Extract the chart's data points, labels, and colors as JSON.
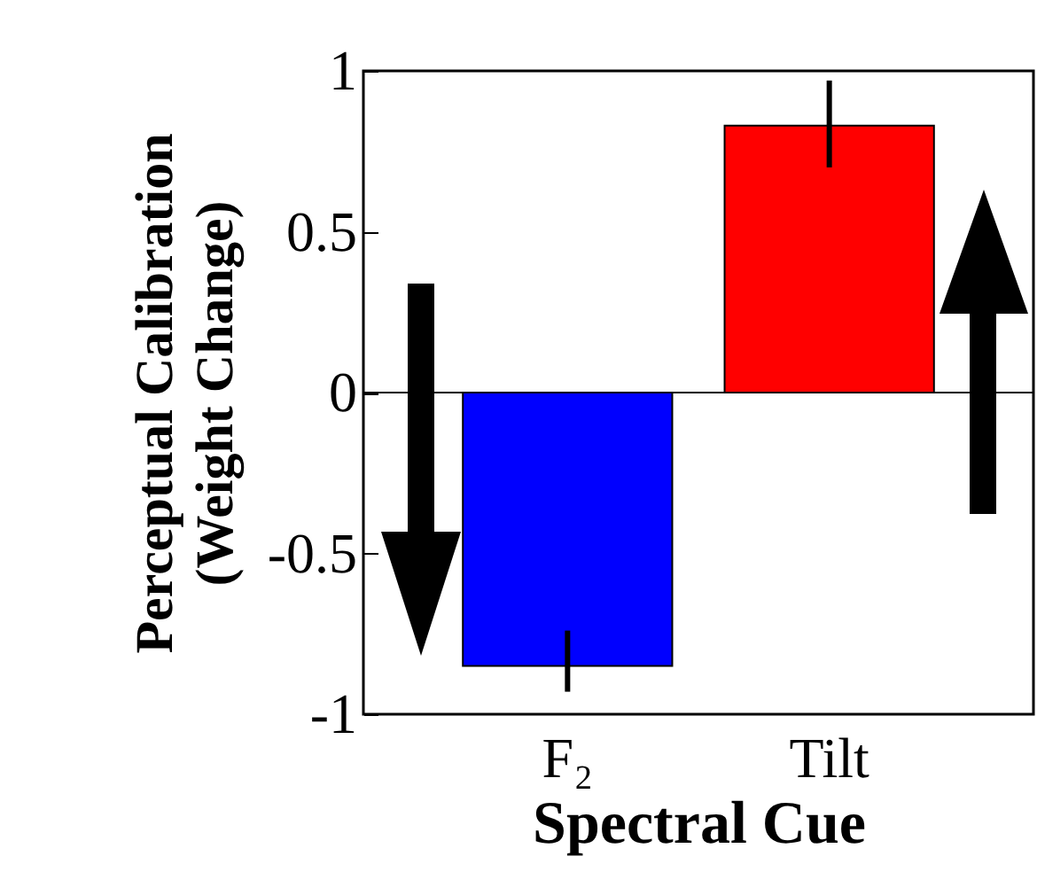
{
  "chart_data": {
    "type": "bar",
    "xlabel": "Spectral Cue",
    "ylabel": "Perceptual Calibration\n(Weight Change)",
    "categories": [
      "F₂",
      "Tilt"
    ],
    "values": [
      -0.85,
      0.83
    ],
    "colors": [
      "#0000ff",
      "#ff0000"
    ],
    "errors": [
      [
        -0.93,
        -0.74
      ],
      [
        0.7,
        0.97
      ]
    ],
    "ylim": [
      -1,
      1
    ],
    "yticks": [
      -1,
      -0.5,
      0,
      0.5,
      1
    ],
    "ref_lines": [
      {
        "axis": "y",
        "value": 0
      }
    ],
    "grid": false
  }
}
